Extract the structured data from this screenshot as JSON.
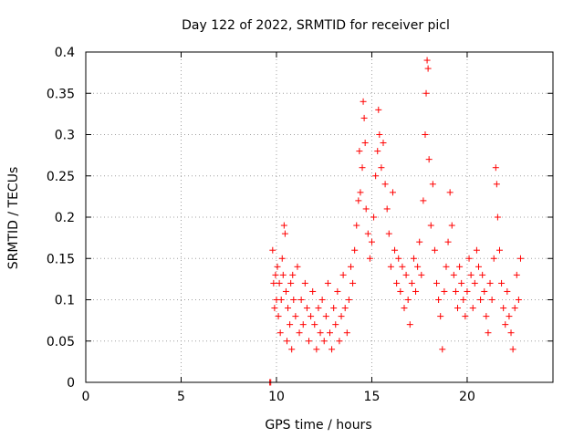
{
  "chart_data": {
    "type": "scatter",
    "title": "Day 122 of 2022, SRMTID for receiver picl",
    "xlabel": "GPS time / hours",
    "ylabel": "SRMTID / TECUs",
    "xlim": [
      0,
      24.5
    ],
    "ylim": [
      0,
      0.4
    ],
    "xticks": [
      0,
      5,
      10,
      15,
      20
    ],
    "xtick_labels": [
      "0",
      "5",
      "10",
      "15",
      "20"
    ],
    "yticks": [
      0,
      0.05,
      0.1,
      0.15,
      0.2,
      0.25,
      0.3,
      0.35,
      0.4
    ],
    "ytick_labels": [
      "0",
      "0.05",
      "0.1",
      "0.15",
      "0.2",
      "0.25",
      "0.3",
      "0.35",
      "0.4"
    ],
    "grid": true,
    "marker": "plus",
    "color": "#ff0000",
    "series": [
      {
        "name": "",
        "points": [
          [
            9.65,
            0.0
          ],
          [
            9.7,
            0.0
          ],
          [
            9.8,
            0.16
          ],
          [
            9.85,
            0.12
          ],
          [
            9.9,
            0.09
          ],
          [
            9.95,
            0.13
          ],
          [
            10.0,
            0.1
          ],
          [
            10.05,
            0.14
          ],
          [
            10.1,
            0.08
          ],
          [
            10.15,
            0.12
          ],
          [
            10.2,
            0.06
          ],
          [
            10.25,
            0.1
          ],
          [
            10.3,
            0.15
          ],
          [
            10.35,
            0.13
          ],
          [
            10.4,
            0.19
          ],
          [
            10.45,
            0.18
          ],
          [
            10.5,
            0.11
          ],
          [
            10.55,
            0.05
          ],
          [
            10.6,
            0.09
          ],
          [
            10.7,
            0.07
          ],
          [
            10.75,
            0.12
          ],
          [
            10.8,
            0.04
          ],
          [
            10.85,
            0.13
          ],
          [
            10.9,
            0.1
          ],
          [
            11.0,
            0.08
          ],
          [
            11.1,
            0.14
          ],
          [
            11.2,
            0.06
          ],
          [
            11.3,
            0.1
          ],
          [
            11.4,
            0.07
          ],
          [
            11.5,
            0.12
          ],
          [
            11.6,
            0.09
          ],
          [
            11.7,
            0.05
          ],
          [
            11.8,
            0.08
          ],
          [
            11.9,
            0.11
          ],
          [
            12.0,
            0.07
          ],
          [
            12.1,
            0.04
          ],
          [
            12.2,
            0.09
          ],
          [
            12.3,
            0.06
          ],
          [
            12.4,
            0.1
          ],
          [
            12.5,
            0.05
          ],
          [
            12.6,
            0.08
          ],
          [
            12.7,
            0.12
          ],
          [
            12.8,
            0.06
          ],
          [
            12.9,
            0.04
          ],
          [
            13.0,
            0.09
          ],
          [
            13.1,
            0.07
          ],
          [
            13.2,
            0.11
          ],
          [
            13.3,
            0.05
          ],
          [
            13.4,
            0.08
          ],
          [
            13.5,
            0.13
          ],
          [
            13.6,
            0.09
          ],
          [
            13.7,
            0.06
          ],
          [
            13.8,
            0.1
          ],
          [
            13.9,
            0.14
          ],
          [
            14.0,
            0.12
          ],
          [
            14.1,
            0.16
          ],
          [
            14.2,
            0.19
          ],
          [
            14.3,
            0.22
          ],
          [
            14.35,
            0.28
          ],
          [
            14.4,
            0.23
          ],
          [
            14.5,
            0.26
          ],
          [
            14.55,
            0.34
          ],
          [
            14.6,
            0.32
          ],
          [
            14.65,
            0.29
          ],
          [
            14.7,
            0.21
          ],
          [
            14.8,
            0.18
          ],
          [
            14.9,
            0.15
          ],
          [
            15.0,
            0.17
          ],
          [
            15.1,
            0.2
          ],
          [
            15.2,
            0.25
          ],
          [
            15.3,
            0.28
          ],
          [
            15.35,
            0.33
          ],
          [
            15.4,
            0.3
          ],
          [
            15.5,
            0.26
          ],
          [
            15.6,
            0.29
          ],
          [
            15.7,
            0.24
          ],
          [
            15.8,
            0.21
          ],
          [
            15.9,
            0.18
          ],
          [
            16.0,
            0.14
          ],
          [
            16.1,
            0.23
          ],
          [
            16.2,
            0.16
          ],
          [
            16.3,
            0.12
          ],
          [
            16.4,
            0.15
          ],
          [
            16.5,
            0.11
          ],
          [
            16.6,
            0.14
          ],
          [
            16.7,
            0.09
          ],
          [
            16.8,
            0.13
          ],
          [
            16.9,
            0.1
          ],
          [
            17.0,
            0.07
          ],
          [
            17.1,
            0.12
          ],
          [
            17.2,
            0.15
          ],
          [
            17.3,
            0.11
          ],
          [
            17.4,
            0.14
          ],
          [
            17.5,
            0.17
          ],
          [
            17.6,
            0.13
          ],
          [
            17.7,
            0.22
          ],
          [
            17.8,
            0.3
          ],
          [
            17.85,
            0.35
          ],
          [
            17.9,
            0.39
          ],
          [
            17.95,
            0.38
          ],
          [
            18.0,
            0.27
          ],
          [
            18.1,
            0.19
          ],
          [
            18.2,
            0.24
          ],
          [
            18.3,
            0.16
          ],
          [
            18.4,
            0.12
          ],
          [
            18.5,
            0.1
          ],
          [
            18.6,
            0.08
          ],
          [
            18.7,
            0.04
          ],
          [
            18.8,
            0.11
          ],
          [
            18.9,
            0.14
          ],
          [
            19.0,
            0.17
          ],
          [
            19.1,
            0.23
          ],
          [
            19.2,
            0.19
          ],
          [
            19.3,
            0.13
          ],
          [
            19.4,
            0.11
          ],
          [
            19.5,
            0.09
          ],
          [
            19.6,
            0.14
          ],
          [
            19.7,
            0.12
          ],
          [
            19.8,
            0.1
          ],
          [
            19.9,
            0.08
          ],
          [
            20.0,
            0.11
          ],
          [
            20.1,
            0.15
          ],
          [
            20.2,
            0.13
          ],
          [
            20.3,
            0.09
          ],
          [
            20.4,
            0.12
          ],
          [
            20.5,
            0.16
          ],
          [
            20.6,
            0.14
          ],
          [
            20.7,
            0.1
          ],
          [
            20.8,
            0.13
          ],
          [
            20.9,
            0.11
          ],
          [
            21.0,
            0.08
          ],
          [
            21.1,
            0.06
          ],
          [
            21.2,
            0.12
          ],
          [
            21.3,
            0.1
          ],
          [
            21.4,
            0.15
          ],
          [
            21.5,
            0.26
          ],
          [
            21.55,
            0.24
          ],
          [
            21.6,
            0.2
          ],
          [
            21.7,
            0.16
          ],
          [
            21.8,
            0.12
          ],
          [
            21.9,
            0.09
          ],
          [
            22.0,
            0.07
          ],
          [
            22.1,
            0.11
          ],
          [
            22.2,
            0.08
          ],
          [
            22.3,
            0.06
          ],
          [
            22.4,
            0.04
          ],
          [
            22.5,
            0.09
          ],
          [
            22.6,
            0.13
          ],
          [
            22.7,
            0.1
          ],
          [
            22.8,
            0.15
          ]
        ]
      }
    ]
  }
}
